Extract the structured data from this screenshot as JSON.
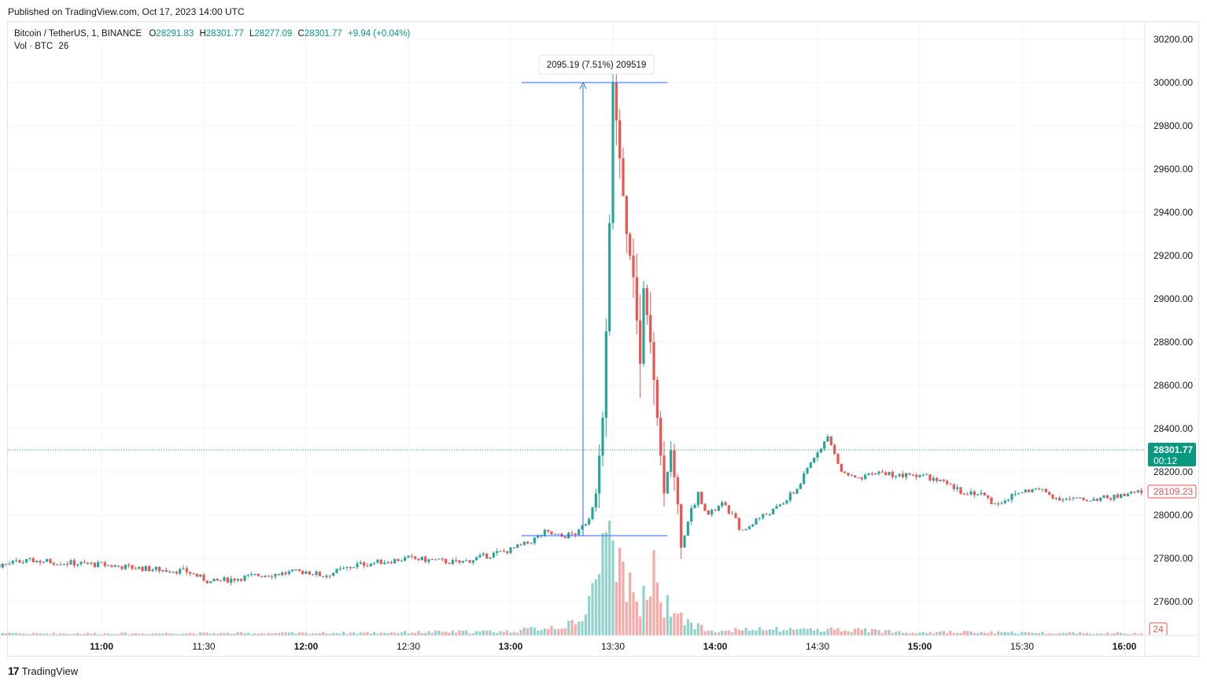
{
  "header": {
    "published": "Published on TradingView.com, Oct 17, 2023 14:00 UTC"
  },
  "legend": {
    "symbol": "Bitcoin / TetherUS, 1, BINANCE",
    "o_label": "O",
    "o_value": "28291.83",
    "h_label": "H",
    "h_value": "28301.77",
    "l_label": "L",
    "l_value": "28277.09",
    "c_label": "C",
    "c_value": "28301.77",
    "change": "+9.94 (+0.04%)",
    "vol_label": "Vol · BTC",
    "vol_value": "26"
  },
  "footer": {
    "brand": "TradingView",
    "logo": "17"
  },
  "colors": {
    "up": "#26a69a",
    "down": "#ef5350",
    "up_vol": "#92d2cc",
    "down_vol": "#f7a9a7",
    "accent": "#089981",
    "measure": "#2962ff"
  },
  "chart_data": {
    "type": "candlestick",
    "symbol": "BTCUSDT",
    "timeframe": "1",
    "x_ticks": [
      "11:00",
      "11:30",
      "12:00",
      "12:30",
      "13:00",
      "13:30",
      "14:00",
      "14:30",
      "15:00",
      "15:30",
      "16:00"
    ],
    "y_ticks": [
      27600,
      27800,
      28000,
      28200,
      28400,
      28600,
      28800,
      29000,
      29200,
      29400,
      29600,
      29800,
      30000,
      30200
    ],
    "ylim": [
      27450,
      30250
    ],
    "grid": true,
    "last_price": "28301.77",
    "countdown": "00:12",
    "marker_price": "28109.23",
    "volume_last": "24",
    "measure": {
      "label": "2095.19 (7.51%) 209519",
      "from_price": 27905,
      "to_price": 30000,
      "from_time": "13:20",
      "to_time": "13:42"
    },
    "price_path": [
      [
        "10:00",
        27740
      ],
      [
        "10:30",
        27770
      ],
      [
        "10:40",
        27790
      ],
      [
        "11:00",
        27770
      ],
      [
        "11:15",
        27750
      ],
      [
        "11:25",
        27740
      ],
      [
        "11:32",
        27690
      ],
      [
        "11:45",
        27720
      ],
      [
        "12:00",
        27740
      ],
      [
        "12:05",
        27720
      ],
      [
        "12:15",
        27770
      ],
      [
        "12:30",
        27800
      ],
      [
        "12:45",
        27780
      ],
      [
        "13:00",
        27840
      ],
      [
        "13:05",
        27870
      ],
      [
        "13:10",
        27920
      ],
      [
        "13:15",
        27900
      ],
      [
        "13:20",
        27920
      ],
      [
        "13:23",
        27990
      ],
      [
        "13:25",
        28100
      ],
      [
        "13:27",
        28450
      ],
      [
        "13:28",
        28850
      ],
      [
        "13:29",
        29350
      ],
      [
        "13:30",
        30000
      ],
      [
        "13:32",
        29650
      ],
      [
        "13:34",
        29300
      ],
      [
        "13:36",
        29100
      ],
      [
        "13:38",
        28700
      ],
      [
        "13:39",
        29050
      ],
      [
        "13:41",
        28800
      ],
      [
        "13:43",
        28450
      ],
      [
        "13:45",
        28100
      ],
      [
        "13:47",
        28300
      ],
      [
        "13:49",
        28050
      ],
      [
        "13:50",
        27850
      ],
      [
        "13:52",
        27980
      ],
      [
        "13:55",
        28100
      ],
      [
        "13:58",
        28000
      ],
      [
        "14:02",
        28050
      ],
      [
        "14:05",
        28000
      ],
      [
        "14:08",
        27920
      ],
      [
        "14:12",
        27980
      ],
      [
        "14:18",
        28030
      ],
      [
        "14:24",
        28120
      ],
      [
        "14:30",
        28300
      ],
      [
        "14:33",
        28360
      ],
      [
        "14:37",
        28200
      ],
      [
        "14:42",
        28160
      ],
      [
        "14:48",
        28200
      ],
      [
        "14:55",
        28180
      ],
      [
        "15:00",
        28190
      ],
      [
        "15:05",
        28160
      ],
      [
        "15:12",
        28110
      ],
      [
        "15:18",
        28100
      ],
      [
        "15:22",
        28050
      ],
      [
        "15:30",
        28110
      ],
      [
        "15:35",
        28120
      ],
      [
        "15:40",
        28080
      ],
      [
        "15:47",
        28070
      ],
      [
        "15:55",
        28080
      ],
      [
        "16:00",
        28090
      ],
      [
        "16:05",
        28109
      ]
    ],
    "volume_profile": [
      [
        "10:00",
        6
      ],
      [
        "12:00",
        8
      ],
      [
        "13:00",
        14
      ],
      [
        "13:20",
        40
      ],
      [
        "13:22",
        110
      ],
      [
        "13:25",
        180
      ],
      [
        "13:28",
        280
      ],
      [
        "13:30",
        340
      ],
      [
        "13:33",
        200
      ],
      [
        "13:35",
        150
      ],
      [
        "13:38",
        90
      ],
      [
        "13:40",
        200
      ],
      [
        "13:42",
        270
      ],
      [
        "13:45",
        110
      ],
      [
        "13:48",
        70
      ],
      [
        "13:52",
        40
      ],
      [
        "14:00",
        18
      ],
      [
        "14:30",
        22
      ],
      [
        "15:00",
        12
      ],
      [
        "15:30",
        10
      ],
      [
        "16:05",
        8
      ]
    ]
  }
}
